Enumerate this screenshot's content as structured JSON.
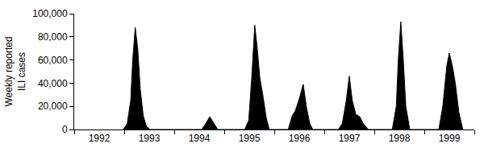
{
  "chart_data": {
    "type": "area",
    "y_label": "Weekly reported\nILI cases",
    "color": "#000000",
    "grid": false,
    "x": [
      1992.98,
      1993.06,
      1993.13,
      1993.17,
      1993.22,
      1993.27,
      1993.32,
      1993.38,
      1993.44,
      1993.51,
      1994.55,
      1994.63,
      1994.71,
      1994.79,
      1994.87,
      1995.41,
      1995.49,
      1995.55,
      1995.61,
      1995.66,
      1995.71,
      1995.77,
      1995.84,
      1995.9,
      1996.28,
      1996.36,
      1996.42,
      1996.49,
      1996.58,
      1996.64,
      1996.71,
      1996.77,
      1997.28,
      1997.36,
      1997.44,
      1997.5,
      1997.56,
      1997.63,
      1997.71,
      1997.78,
      1997.88,
      1998.36,
      1998.44,
      1998.48,
      1998.53,
      1998.58,
      1998.63,
      1998.71,
      1999.29,
      1999.37,
      1999.45,
      1999.5,
      1999.56,
      1999.62,
      1999.69,
      1999.77
    ],
    "values": [
      0,
      5000,
      25000,
      60000,
      88000,
      70000,
      35000,
      12000,
      3000,
      0,
      0,
      5000,
      11000,
      5000,
      0,
      0,
      8000,
      45000,
      90000,
      70000,
      45000,
      30000,
      10000,
      0,
      0,
      12000,
      16000,
      25000,
      39000,
      20000,
      5000,
      0,
      0,
      5000,
      25000,
      46000,
      25000,
      13000,
      11000,
      5000,
      0,
      0,
      20000,
      60000,
      93000,
      60000,
      20000,
      0,
      0,
      20000,
      55000,
      66000,
      55000,
      40000,
      15000,
      0
    ],
    "xlim": [
      1992,
      2000
    ],
    "xticks": [
      {
        "value": 1992.5,
        "label": "1992"
      },
      {
        "value": 1993.5,
        "label": "1993"
      },
      {
        "value": 1994.5,
        "label": "1994"
      },
      {
        "value": 1995.5,
        "label": "1995"
      },
      {
        "value": 1996.5,
        "label": "1996"
      },
      {
        "value": 1997.5,
        "label": "1997"
      },
      {
        "value": 1998.5,
        "label": "1998"
      },
      {
        "value": 1999.5,
        "label": "1999"
      }
    ],
    "ylim": [
      0,
      100000
    ],
    "yticks": [
      0,
      {
        "value": 20000,
        "label": "20,000"
      },
      {
        "value": 40000,
        "label": "40,000"
      },
      {
        "value": 60000,
        "label": "60,000"
      },
      {
        "value": 80000,
        "label": "80,000"
      },
      {
        "value": 100000,
        "label": "100,000"
      }
    ]
  }
}
